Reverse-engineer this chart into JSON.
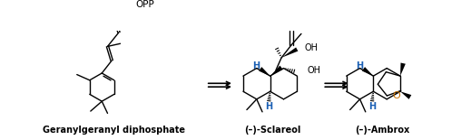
{
  "figsize": [
    5.19,
    1.55
  ],
  "dpi": 100,
  "background_color": "#ffffff",
  "label1": "Geranylgeranyl diphosphate",
  "label2": "(–)-Sclareol",
  "label3": "(–)-Ambrox",
  "blue": "#1a5fb4",
  "orange": "#c87000",
  "black": "#000000",
  "gray": "#888888"
}
